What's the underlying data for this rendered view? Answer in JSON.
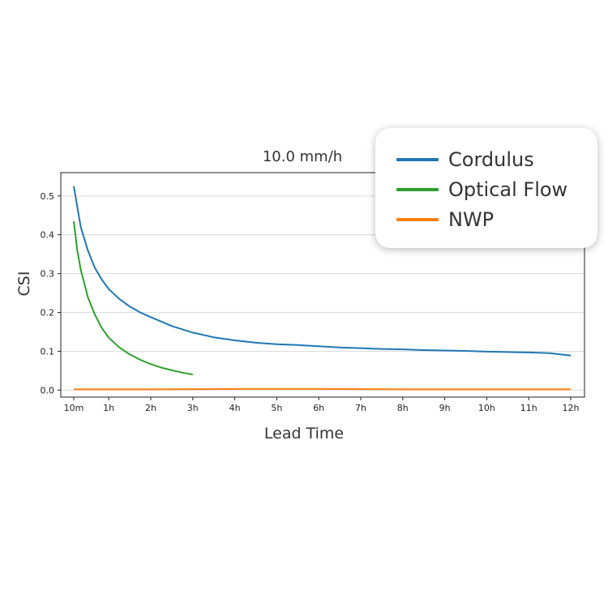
{
  "chart_data": {
    "type": "line",
    "title": "10.0 mm/h",
    "xlabel": "Lead Time",
    "ylabel": "CSI",
    "x_unit": "minutes",
    "xlim": [
      10,
      720
    ],
    "ylim": [
      -0.018,
      0.56
    ],
    "x_ticks": [
      {
        "value": 10,
        "label": "10m"
      },
      {
        "value": 60,
        "label": "1h"
      },
      {
        "value": 120,
        "label": "2h"
      },
      {
        "value": 180,
        "label": "3h"
      },
      {
        "value": 240,
        "label": "4h"
      },
      {
        "value": 300,
        "label": "5h"
      },
      {
        "value": 360,
        "label": "6h"
      },
      {
        "value": 420,
        "label": "7h"
      },
      {
        "value": 480,
        "label": "8h"
      },
      {
        "value": 540,
        "label": "9h"
      },
      {
        "value": 600,
        "label": "10h"
      },
      {
        "value": 660,
        "label": "11h"
      },
      {
        "value": 720,
        "label": "12h"
      }
    ],
    "y_ticks": [
      {
        "value": 0.0,
        "label": "0.0"
      },
      {
        "value": 0.1,
        "label": "0.1"
      },
      {
        "value": 0.2,
        "label": "0.2"
      },
      {
        "value": 0.3,
        "label": "0.3"
      },
      {
        "value": 0.4,
        "label": "0.4"
      },
      {
        "value": 0.5,
        "label": "0.5"
      }
    ],
    "grid": "horizontal",
    "legend_position": "top-right",
    "series": [
      {
        "name": "Cordulus",
        "color": "#1f77b4",
        "x": [
          10,
          20,
          30,
          40,
          50,
          60,
          75,
          90,
          105,
          120,
          150,
          180,
          210,
          240,
          270,
          300,
          330,
          360,
          390,
          420,
          450,
          480,
          510,
          540,
          570,
          600,
          630,
          660,
          690,
          720
        ],
        "y": [
          0.525,
          0.42,
          0.36,
          0.315,
          0.285,
          0.26,
          0.235,
          0.215,
          0.2,
          0.188,
          0.165,
          0.148,
          0.136,
          0.128,
          0.122,
          0.118,
          0.116,
          0.113,
          0.11,
          0.108,
          0.106,
          0.105,
          0.103,
          0.102,
          0.101,
          0.099,
          0.098,
          0.097,
          0.095,
          0.089
        ]
      },
      {
        "name": "Optical Flow",
        "color": "#2ca02c",
        "x": [
          10,
          15,
          20,
          25,
          30,
          40,
          50,
          60,
          75,
          90,
          105,
          120,
          135,
          150,
          165,
          180
        ],
        "y": [
          0.435,
          0.36,
          0.31,
          0.275,
          0.24,
          0.195,
          0.16,
          0.135,
          0.11,
          0.092,
          0.078,
          0.067,
          0.058,
          0.051,
          0.045,
          0.04
        ]
      },
      {
        "name": "NWP",
        "color": "#ff7f0e",
        "x": [
          10,
          120,
          240,
          360,
          480,
          600,
          720
        ],
        "y": [
          0.002,
          0.002,
          0.003,
          0.003,
          0.002,
          0.002,
          0.002
        ]
      }
    ]
  }
}
